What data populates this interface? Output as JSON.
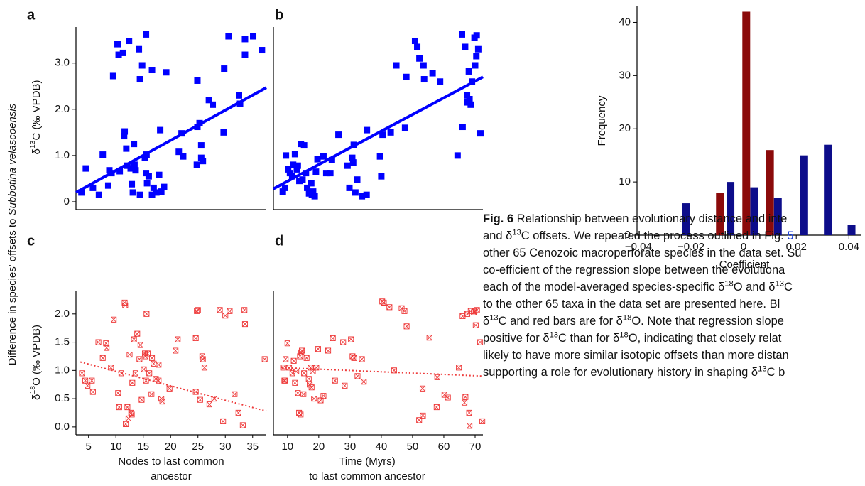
{
  "figure_ylabel": [
    "Difference in species' offsets to ",
    {
      "text": "Subbotina velascoensis",
      "style": "italic"
    }
  ],
  "chart_data": [
    {
      "type": "scatter",
      "panel": "a",
      "ylabel": [
        "δ",
        {
          "text": "13",
          "style": "sup"
        },
        "C (‰ VPDB)"
      ],
      "xlim": [
        2.7,
        37.5
      ],
      "ylim": [
        -0.17,
        3.78
      ],
      "yticks": [
        0,
        {
          "value": 1,
          "label": "1.0"
        },
        {
          "value": 2,
          "label": "2.0"
        },
        {
          "value": 3,
          "label": "3.0"
        }
      ],
      "color": "#0000ff",
      "marker": "square",
      "line_style": "solid",
      "x": [
        3.7,
        4.5,
        5.8,
        6.9,
        7.6,
        8.6,
        8.8,
        9.2,
        9.5,
        10.3,
        10.5,
        10.7,
        11.3,
        11.5,
        11.6,
        11.9,
        12.1,
        12.4,
        12.7,
        12.9,
        13.1,
        13.3,
        13.4,
        13.6,
        14.2,
        14.4,
        14.4,
        14.8,
        15.5,
        15.3,
        15.5,
        15.7,
        15.6,
        16.0,
        16.6,
        16.6,
        16.9,
        17.4,
        17.9,
        18.1,
        18.3,
        18.8,
        19.2,
        21.5,
        22.0,
        22.3,
        24.9,
        24.8,
        24.9,
        25.3,
        25.6,
        25.6,
        25.9,
        27.0,
        27.7,
        29.7,
        29.8,
        30.6,
        32.5,
        32.7,
        33.6,
        33.6,
        35.1,
        36.7
      ],
      "values": [
        0.2,
        0.72,
        0.3,
        0.15,
        1.02,
        0.35,
        0.68,
        0.62,
        2.72,
        3.41,
        3.18,
        0.66,
        3.22,
        1.42,
        1.52,
        1.15,
        0.78,
        3.48,
        0.72,
        0.38,
        0.2,
        1.25,
        0.8,
        0.68,
        3.3,
        2.65,
        0.15,
        2.95,
        3.62,
        0.95,
        0.62,
        0.4,
        1.02,
        0.55,
        2.85,
        0.15,
        0.3,
        0.2,
        0.58,
        1.55,
        0.22,
        0.32,
        2.8,
        1.08,
        1.48,
        0.98,
        2.62,
        0.8,
        1.62,
        1.7,
        0.95,
        1.22,
        0.88,
        2.2,
        2.1,
        1.5,
        2.88,
        3.58,
        2.3,
        2.12,
        3.18,
        3.52,
        3.58,
        3.28
      ],
      "trend": {
        "x": [
          2.7,
          37.5
        ],
        "values": [
          0.2,
          2.47
        ]
      }
    },
    {
      "type": "scatter",
      "panel": "b",
      "xlim": [
        5.5,
        72.5
      ],
      "ylim": [
        -0.17,
        3.78
      ],
      "color": "#0000ff",
      "marker": "square",
      "line_style": "solid",
      "x": [
        8.5,
        9.2,
        9.5,
        10.2,
        10.8,
        11.5,
        11.8,
        12.4,
        13.0,
        13.3,
        13.8,
        14.3,
        14.8,
        15.3,
        15.9,
        16.3,
        16.9,
        17.6,
        17.8,
        18.2,
        18.7,
        19.1,
        19.6,
        21.5,
        22.4,
        23.7,
        24.2,
        26.3,
        29.2,
        29.8,
        30.7,
        31.0,
        31.2,
        31.7,
        32.3,
        33.8,
        35.3,
        35.4,
        39.6,
        40.0,
        40.4,
        43.0,
        44.8,
        47.6,
        48.0,
        50.8,
        51.5,
        52.2,
        53.7,
        53.5,
        56.4,
        58.8,
        64.4,
        65.8,
        66.0,
        66.8,
        67.4,
        67.6,
        68.0,
        68.2,
        68.6,
        69.0,
        69.8,
        70.0,
        70.4,
        70.5,
        71.0,
        71.7
      ],
      "values": [
        0.22,
        0.3,
        1.0,
        0.7,
        0.62,
        0.55,
        0.8,
        1.03,
        0.7,
        0.78,
        0.45,
        1.25,
        0.48,
        1.22,
        0.62,
        0.3,
        0.18,
        0.4,
        0.15,
        0.22,
        0.12,
        0.65,
        0.92,
        0.98,
        0.62,
        0.62,
        0.9,
        1.45,
        0.78,
        0.3,
        0.95,
        0.85,
        1.23,
        0.2,
        0.48,
        0.12,
        0.15,
        1.55,
        0.98,
        0.55,
        1.45,
        1.5,
        2.95,
        1.6,
        2.7,
        3.48,
        3.35,
        3.1,
        2.65,
        2.95,
        2.78,
        2.6,
        1.0,
        3.62,
        1.62,
        3.35,
        2.3,
        2.15,
        2.82,
        2.22,
        2.1,
        2.6,
        3.55,
        2.95,
        3.15,
        3.6,
        3.3,
        1.48
      ],
      "trend": {
        "x": [
          5.5,
          72.5
        ],
        "values": [
          0.28,
          2.7
        ]
      }
    },
    {
      "type": "scatter",
      "panel": "c",
      "ylabel": [
        "δ",
        {
          "text": "18",
          "style": "sup"
        },
        "O (‰ VPDB)"
      ],
      "xlabel": [
        "Nodes to last common",
        "ancestor"
      ],
      "xlim": [
        2.7,
        37.5
      ],
      "ylim": [
        -0.14,
        2.4
      ],
      "xticks": [
        5,
        10,
        15,
        20,
        25,
        30,
        35
      ],
      "yticks": [
        {
          "value": 0,
          "label": "0.0"
        },
        0.5,
        {
          "value": 1,
          "label": "1.0"
        },
        1.5,
        {
          "value": 2,
          "label": "2.0"
        }
      ],
      "color": "#ee3b3b",
      "marker": "crossed-square",
      "line_style": "dotted",
      "x": [
        3.8,
        4.4,
        4.8,
        5.6,
        5.8,
        6.8,
        7.6,
        8.2,
        8.3,
        9.1,
        9.6,
        10.4,
        10.6,
        11.0,
        11.6,
        11.7,
        11.8,
        12.1,
        12.3,
        12.5,
        12.8,
        12.9,
        13.0,
        13.3,
        13.6,
        13.9,
        14.3,
        14.5,
        14.7,
        15.1,
        15.3,
        15.4,
        15.5,
        15.6,
        15.8,
        16.1,
        16.5,
        16.6,
        16.9,
        17.3,
        17.8,
        17.8,
        18.3,
        18.5,
        19.8,
        20.9,
        21.3,
        24.6,
        24.6,
        24.8,
        25.0,
        25.4,
        25.8,
        25.9,
        26.2,
        27.1,
        28.0,
        29.0,
        29.6,
        30.0,
        30.8,
        31.7,
        32.4,
        33.2,
        33.5,
        33.6,
        37.2
      ],
      "values": [
        0.95,
        0.82,
        0.73,
        0.82,
        0.62,
        1.5,
        1.22,
        1.48,
        1.4,
        1.05,
        1.9,
        0.6,
        0.35,
        0.95,
        2.2,
        2.15,
        0.05,
        0.35,
        0.15,
        1.28,
        0.25,
        0.22,
        0.78,
        1.55,
        0.95,
        1.65,
        1.2,
        1.45,
        0.48,
        1.02,
        1.3,
        1.25,
        0.82,
        2.0,
        1.3,
        0.95,
        0.58,
        1.22,
        1.12,
        0.85,
        1.1,
        0.82,
        0.5,
        0.45,
        0.68,
        1.35,
        1.55,
        1.57,
        0.62,
        2.05,
        2.07,
        0.48,
        1.25,
        1.2,
        1.05,
        0.4,
        0.5,
        2.07,
        0.1,
        1.97,
        2.05,
        0.58,
        0.25,
        0.03,
        2.07,
        1.82,
        1.2
      ],
      "trend": {
        "x": [
          3.5,
          37.5
        ],
        "values": [
          1.15,
          0.28
        ]
      }
    },
    {
      "type": "scatter",
      "panel": "d",
      "xlabel": [
        "Time (Myrs)",
        "to last common ancestor"
      ],
      "xlim": [
        5.5,
        72.5
      ],
      "ylim": [
        -0.14,
        2.4
      ],
      "xticks": [
        10,
        20,
        30,
        40,
        50,
        60,
        70
      ],
      "color": "#ee3b3b",
      "marker": "crossed-square",
      "line_style": "dotted",
      "x": [
        8.6,
        9.0,
        9.2,
        9.4,
        10.0,
        10.5,
        11.6,
        12.0,
        12.4,
        12.8,
        13.3,
        13.7,
        14.0,
        14.2,
        14.4,
        14.6,
        15.1,
        15.3,
        16.1,
        16.8,
        17.1,
        17.4,
        17.7,
        18.1,
        18.5,
        19.2,
        19.8,
        20.6,
        21.5,
        23.0,
        24.5,
        25.2,
        27.8,
        28.3,
        30.3,
        30.8,
        31.3,
        32.4,
        33.8,
        34.4,
        40.3,
        40.8,
        42.6,
        44.1,
        46.5,
        47.4,
        48.1,
        52.1,
        53.2,
        53.3,
        55.4,
        57.7,
        57.9,
        60.2,
        61.3,
        64.8,
        66.0,
        66.6,
        66.9,
        67.5,
        68.1,
        68.2,
        68.6,
        69.6,
        69.8,
        70.2,
        70.6,
        71.6,
        72.3
      ],
      "values": [
        1.05,
        0.82,
        0.82,
        1.2,
        1.48,
        1.05,
        0.95,
        1.17,
        0.78,
        0.98,
        0.6,
        0.25,
        1.25,
        0.22,
        1.32,
        1.35,
        0.58,
        0.95,
        1.22,
        0.85,
        0.75,
        1.05,
        0.7,
        0.98,
        0.5,
        1.05,
        1.38,
        0.47,
        0.55,
        1.35,
        1.57,
        0.82,
        1.5,
        0.73,
        1.55,
        1.25,
        1.22,
        0.9,
        1.2,
        0.8,
        2.22,
        2.2,
        2.12,
        1.0,
        2.1,
        2.05,
        1.78,
        0.12,
        0.68,
        0.2,
        1.58,
        0.35,
        0.88,
        0.57,
        0.52,
        1.05,
        1.96,
        0.43,
        0.53,
        2.0,
        0.25,
        0.02,
        2.05,
        2.03,
        2.05,
        1.8,
        2.07,
        1.5,
        0.1
      ],
      "trend": {
        "x": [
          8,
          72.5
        ],
        "values": [
          1.05,
          0.9
        ]
      }
    },
    {
      "type": "bar",
      "ylabel": [
        "Frequency"
      ],
      "xlabel": [
        "Coefficient"
      ],
      "xlim": [
        -0.0405,
        0.0445
      ],
      "ylim": [
        0,
        43
      ],
      "xticks": [
        {
          "value": -0.04,
          "label": "−0.04"
        },
        {
          "value": -0.02,
          "label": "−0.02"
        },
        0,
        0.02,
        0.04
      ],
      "yticks": [
        0,
        10,
        20,
        30,
        40
      ],
      "series": [
        {
          "color": "#0d0d8a",
          "x": [
            -0.022,
            -0.005,
            0.004,
            0.013,
            0.023,
            0.032,
            0.041
          ],
          "values": [
            6,
            10,
            9,
            7,
            15,
            17,
            2
          ]
        },
        {
          "color": "#8b0a0a",
          "x": [
            -0.009,
            0.001,
            0.01
          ],
          "values": [
            8,
            42,
            16
          ]
        }
      ]
    }
  ],
  "caption": {
    "lines": [
      [
        {
          "text": "Fig. 6",
          "style": "bold"
        },
        " Relationship between evolutionary distance and inte"
      ],
      [
        "and δ",
        {
          "text": "13",
          "style": "sup"
        },
        "C offsets. We repeated the process outlined in Fig. ",
        {
          "text": "5",
          "style": "link"
        }
      ],
      [
        "other 65 Cenozoic macroperforate species in the data set. Su"
      ],
      [
        "co-efficient of the regression slope between the evolutiona"
      ],
      [
        "each of the model-averaged species-specific δ",
        {
          "text": "18",
          "style": "sup"
        },
        "O and δ",
        {
          "text": "13",
          "style": "sup"
        },
        "C"
      ],
      [
        "to the other 65 taxa in the data set are presented here. Bl"
      ],
      [
        "δ",
        {
          "text": "13",
          "style": "sup"
        },
        "C and red bars are for δ",
        {
          "text": "18",
          "style": "sup"
        },
        "O. Note that regression slope"
      ],
      [
        "positive for δ",
        {
          "text": "13",
          "style": "sup"
        },
        "C than for δ",
        {
          "text": "18",
          "style": "sup"
        },
        "O, indicating that closely relat"
      ],
      [
        "likely to have more similar isotopic offsets than more distan"
      ],
      [
        "supporting a role for evolutionary history in shaping δ",
        {
          "text": "13",
          "style": "sup"
        },
        "C b"
      ]
    ]
  }
}
